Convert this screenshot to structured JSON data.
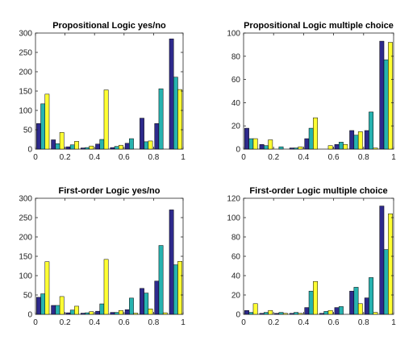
{
  "chart_data": [
    {
      "type": "bar",
      "title": "Propositional Logic yes/no",
      "x": [
        0.05,
        0.15,
        0.25,
        0.35,
        0.45,
        0.55,
        0.65,
        0.75,
        0.85,
        0.95
      ],
      "xlim": [
        0,
        1
      ],
      "ylim": [
        0,
        300
      ],
      "xticks": [
        "0",
        "0.2",
        "0.4",
        "0.6",
        "0.8",
        "1"
      ],
      "yticks": [
        "0",
        "50",
        "100",
        "150",
        "200",
        "250",
        "300"
      ],
      "series": [
        {
          "color": "#2e2a8c",
          "values": [
            66,
            24,
            6,
            3,
            13,
            4,
            15,
            80,
            66,
            285
          ]
        },
        {
          "color": "#27b3b0",
          "values": [
            117,
            14,
            11,
            4,
            25,
            7,
            27,
            19,
            156,
            186
          ]
        },
        {
          "color": "#ffff33",
          "values": [
            142,
            43,
            20,
            8,
            153,
            10,
            0,
            21,
            0,
            154
          ]
        }
      ],
      "grid": false
    },
    {
      "type": "bar",
      "title": "Propositional Logic multiple choice",
      "x": [
        0.05,
        0.15,
        0.25,
        0.35,
        0.45,
        0.55,
        0.65,
        0.75,
        0.85,
        0.95
      ],
      "xlim": [
        0,
        1
      ],
      "ylim": [
        0,
        100
      ],
      "xticks": [
        "0",
        "0.2",
        "0.4",
        "0.6",
        "0.8",
        "1"
      ],
      "yticks": [
        "0",
        "20",
        "40",
        "60",
        "80",
        "100"
      ],
      "series": [
        {
          "color": "#2e2a8c",
          "values": [
            18,
            4,
            0,
            1,
            9,
            0,
            4,
            16,
            16,
            93
          ]
        },
        {
          "color": "#27b3b0",
          "values": [
            9,
            3,
            2,
            1,
            18,
            0,
            6,
            12,
            32,
            77
          ]
        },
        {
          "color": "#ffff33",
          "values": [
            9,
            8,
            0,
            2,
            27,
            3,
            4,
            15,
            1,
            92
          ]
        }
      ],
      "grid": false
    },
    {
      "type": "bar",
      "title": "First-order Logic yes/no",
      "x": [
        0.05,
        0.15,
        0.25,
        0.35,
        0.45,
        0.55,
        0.65,
        0.75,
        0.85,
        0.95
      ],
      "xlim": [
        0,
        1
      ],
      "ylim": [
        0,
        300
      ],
      "xticks": [
        "0",
        "0.2",
        "0.4",
        "0.6",
        "0.8",
        "1"
      ],
      "yticks": [
        "0",
        "50",
        "100",
        "150",
        "200",
        "250",
        "300"
      ],
      "series": [
        {
          "color": "#2e2a8c",
          "values": [
            44,
            23,
            4,
            3,
            8,
            5,
            12,
            67,
            86,
            270
          ]
        },
        {
          "color": "#27b3b0",
          "values": [
            53,
            23,
            11,
            4,
            27,
            5,
            42,
            55,
            178,
            128
          ]
        },
        {
          "color": "#ffff33",
          "values": [
            136,
            46,
            21,
            7,
            142,
            10,
            3,
            14,
            4,
            137
          ]
        }
      ],
      "grid": false
    },
    {
      "type": "bar",
      "title": "First-order Logic multiple choice",
      "x": [
        0.05,
        0.15,
        0.25,
        0.35,
        0.45,
        0.55,
        0.65,
        0.75,
        0.85,
        0.95
      ],
      "xlim": [
        0,
        1
      ],
      "ylim": [
        0,
        120
      ],
      "xticks": [
        "0",
        "0.2",
        "0.4",
        "0.6",
        "0.8",
        "1"
      ],
      "yticks": [
        "0",
        "20",
        "40",
        "60",
        "80",
        "100",
        "120"
      ],
      "series": [
        {
          "color": "#2e2a8c",
          "values": [
            4,
            1,
            1,
            1,
            7,
            1,
            7,
            24,
            17,
            112
          ]
        },
        {
          "color": "#27b3b0",
          "values": [
            2,
            2,
            2,
            2,
            24,
            3,
            8,
            28,
            38,
            67
          ]
        },
        {
          "color": "#ffff33",
          "values": [
            11,
            4,
            1,
            1,
            34,
            4,
            0,
            11,
            2,
            104
          ]
        }
      ],
      "grid": false
    }
  ]
}
